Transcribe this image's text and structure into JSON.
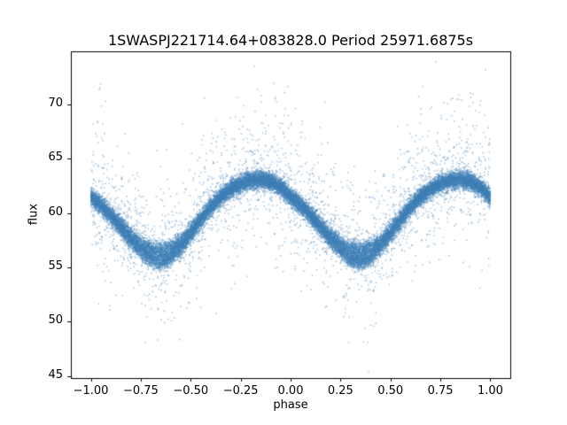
{
  "chart_data": {
    "type": "scatter",
    "title": "1SWASPJ221714.64+083828.0 Period 25971.6875s",
    "xlabel": "phase",
    "ylabel": "flux",
    "xlim": [
      -1.1,
      1.1
    ],
    "ylim": [
      44.8,
      74.9
    ],
    "x_ticks": [
      -1.0,
      -0.75,
      -0.5,
      -0.25,
      0.0,
      0.25,
      0.5,
      0.75,
      1.0
    ],
    "x_tick_labels": [
      "−1.00",
      "−0.75",
      "−0.50",
      "−0.25",
      "0.00",
      "0.25",
      "0.50",
      "0.75",
      "1.00"
    ],
    "y_ticks": [
      45,
      50,
      55,
      60,
      65,
      70
    ],
    "y_tick_labels": [
      "45",
      "50",
      "55",
      "60",
      "65",
      "70"
    ],
    "grid": false,
    "legend": "none",
    "marker_color": "#3d7fb5",
    "marker_alpha": 0.42,
    "frame_color": "#000000",
    "phase_range": [
      -1,
      1
    ],
    "curve_phase_step": 0.05,
    "curve_primary": [
      61.5,
      60.7,
      59.7,
      58.6,
      57.5,
      56.5,
      55.8,
      55.5,
      55.9,
      56.8,
      58.0,
      59.3,
      60.5,
      61.5,
      62.2,
      62.7,
      63.0,
      63.1,
      62.9,
      62.4,
      61.5
    ],
    "curve_secondary": [
      61.5,
      60.8,
      59.9,
      58.9,
      58.0,
      57.2,
      56.7,
      56.5,
      56.8,
      57.4,
      58.4,
      59.5,
      60.6,
      61.5,
      62.2,
      62.7,
      63.0,
      63.1,
      62.9,
      62.4,
      61.5
    ],
    "primary_fraction": 0.55,
    "n_points": 26000,
    "noise_sigma": 0.4,
    "tail_fraction": 0.06,
    "tail_sigma": 1.6,
    "outliers": {
      "count": 950,
      "up_fraction": 0.62,
      "sigma_up": 3.6,
      "sigma_down": 3.0
    },
    "seed": 42
  }
}
